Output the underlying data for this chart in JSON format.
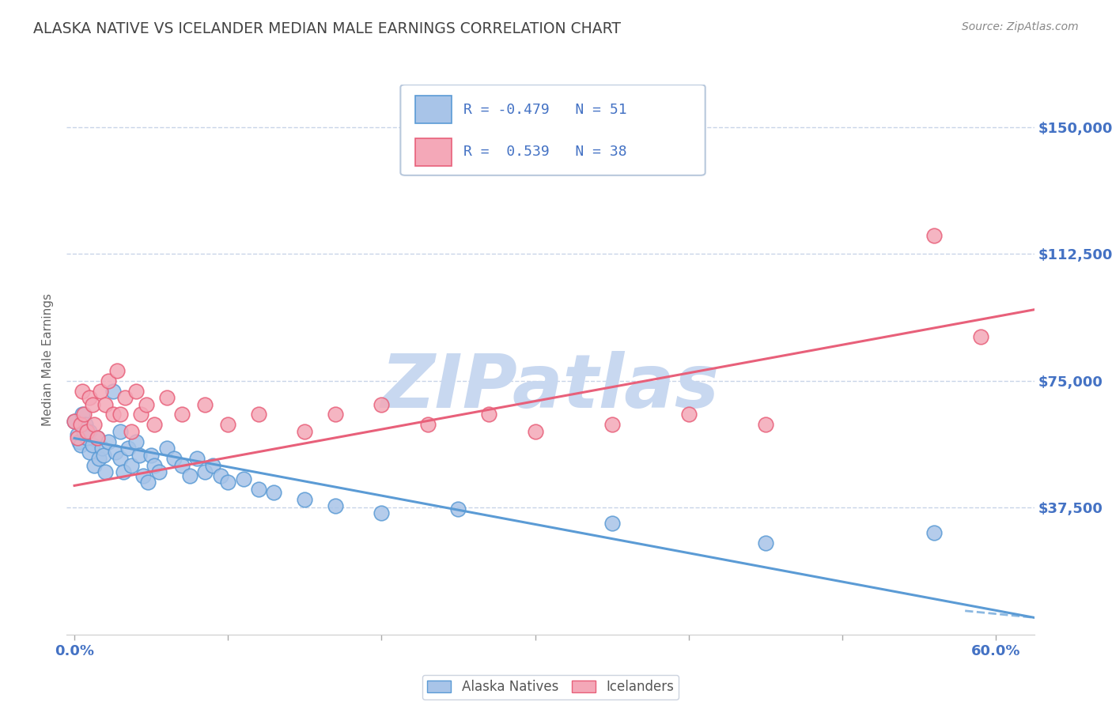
{
  "title": "ALASKA NATIVE VS ICELANDER MEDIAN MALE EARNINGS CORRELATION CHART",
  "source": "Source: ZipAtlas.com",
  "ylabel": "Median Male Earnings",
  "ytick_labels": [
    "$37,500",
    "$75,000",
    "$112,500",
    "$150,000"
  ],
  "ytick_vals": [
    37500,
    75000,
    112500,
    150000
  ],
  "ylim": [
    0,
    162500
  ],
  "xlim": [
    -0.005,
    0.625
  ],
  "watermark": "ZIPatlas",
  "legend_labels": [
    "Alaska Natives",
    "Icelanders"
  ],
  "R_alaska": -0.479,
  "N_alaska": 51,
  "R_icelander": 0.539,
  "N_icelander": 38,
  "alaska_color": "#a8c4e8",
  "icelander_color": "#f4a8b8",
  "alaska_edge_color": "#5b9bd5",
  "icelander_edge_color": "#e8607a",
  "alaska_scatter": [
    [
      0.0,
      63000
    ],
    [
      0.002,
      59000
    ],
    [
      0.003,
      57000
    ],
    [
      0.004,
      56000
    ],
    [
      0.005,
      65000
    ],
    [
      0.006,
      60000
    ],
    [
      0.007,
      62000
    ],
    [
      0.008,
      58000
    ],
    [
      0.01,
      54000
    ],
    [
      0.01,
      60000
    ],
    [
      0.012,
      56000
    ],
    [
      0.013,
      50000
    ],
    [
      0.015,
      58000
    ],
    [
      0.016,
      52000
    ],
    [
      0.018,
      55000
    ],
    [
      0.019,
      53000
    ],
    [
      0.02,
      48000
    ],
    [
      0.022,
      57000
    ],
    [
      0.025,
      72000
    ],
    [
      0.027,
      54000
    ],
    [
      0.03,
      60000
    ],
    [
      0.03,
      52000
    ],
    [
      0.032,
      48000
    ],
    [
      0.035,
      55000
    ],
    [
      0.037,
      50000
    ],
    [
      0.04,
      57000
    ],
    [
      0.042,
      53000
    ],
    [
      0.045,
      47000
    ],
    [
      0.048,
      45000
    ],
    [
      0.05,
      53000
    ],
    [
      0.052,
      50000
    ],
    [
      0.055,
      48000
    ],
    [
      0.06,
      55000
    ],
    [
      0.065,
      52000
    ],
    [
      0.07,
      50000
    ],
    [
      0.075,
      47000
    ],
    [
      0.08,
      52000
    ],
    [
      0.085,
      48000
    ],
    [
      0.09,
      50000
    ],
    [
      0.095,
      47000
    ],
    [
      0.1,
      45000
    ],
    [
      0.11,
      46000
    ],
    [
      0.12,
      43000
    ],
    [
      0.13,
      42000
    ],
    [
      0.15,
      40000
    ],
    [
      0.17,
      38000
    ],
    [
      0.2,
      36000
    ],
    [
      0.25,
      37000
    ],
    [
      0.35,
      33000
    ],
    [
      0.45,
      27000
    ],
    [
      0.56,
      30000
    ]
  ],
  "icelander_scatter": [
    [
      0.0,
      63000
    ],
    [
      0.002,
      58000
    ],
    [
      0.004,
      62000
    ],
    [
      0.005,
      72000
    ],
    [
      0.006,
      65000
    ],
    [
      0.008,
      60000
    ],
    [
      0.01,
      70000
    ],
    [
      0.012,
      68000
    ],
    [
      0.013,
      62000
    ],
    [
      0.015,
      58000
    ],
    [
      0.017,
      72000
    ],
    [
      0.02,
      68000
    ],
    [
      0.022,
      75000
    ],
    [
      0.025,
      65000
    ],
    [
      0.028,
      78000
    ],
    [
      0.03,
      65000
    ],
    [
      0.033,
      70000
    ],
    [
      0.037,
      60000
    ],
    [
      0.04,
      72000
    ],
    [
      0.043,
      65000
    ],
    [
      0.047,
      68000
    ],
    [
      0.052,
      62000
    ],
    [
      0.06,
      70000
    ],
    [
      0.07,
      65000
    ],
    [
      0.085,
      68000
    ],
    [
      0.1,
      62000
    ],
    [
      0.12,
      65000
    ],
    [
      0.15,
      60000
    ],
    [
      0.17,
      65000
    ],
    [
      0.2,
      68000
    ],
    [
      0.23,
      62000
    ],
    [
      0.27,
      65000
    ],
    [
      0.3,
      60000
    ],
    [
      0.35,
      62000
    ],
    [
      0.4,
      65000
    ],
    [
      0.45,
      62000
    ],
    [
      0.56,
      118000
    ],
    [
      0.59,
      88000
    ]
  ],
  "alaska_trend_x": [
    0.0,
    0.625
  ],
  "alaska_trend_y": [
    58000,
    5000
  ],
  "icelander_trend_x": [
    0.0,
    0.625
  ],
  "icelander_trend_y": [
    44000,
    96000
  ],
  "grid_yticks": [
    37500,
    75000,
    112500,
    150000
  ],
  "background_color": "#ffffff",
  "grid_color": "#c8d4e8",
  "title_color": "#444444",
  "axis_tick_color": "#4472c4",
  "watermark_color": "#c8d8f0",
  "ylabel_color": "#666666"
}
